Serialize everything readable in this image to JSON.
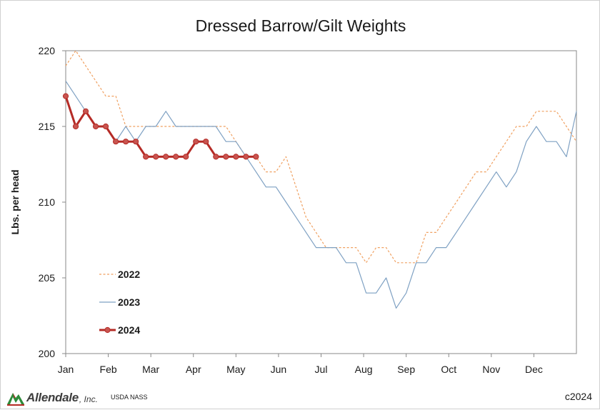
{
  "chart_data": {
    "type": "line",
    "title": "Dressed Barrow/Gilt Weights",
    "ylabel": "Lbs. per head",
    "xlabel": "",
    "ylim": [
      200,
      220
    ],
    "yticks": [
      200,
      205,
      210,
      215,
      220
    ],
    "x_ticks": [
      "Jan",
      "Feb",
      "Mar",
      "Apr",
      "May",
      "Jun",
      "Jul",
      "Aug",
      "Sep",
      "Oct",
      "Nov",
      "Dec"
    ],
    "x_unit": "week of year",
    "x_range": [
      1,
      52
    ],
    "grid": false,
    "legend_position": "bottom-left",
    "series": [
      {
        "name": "2022",
        "color": "#f0a060",
        "style": "dashed",
        "markers": false,
        "x": [
          1,
          2,
          3,
          4,
          5,
          6,
          7,
          8,
          9,
          10,
          11,
          12,
          13,
          14,
          15,
          16,
          17,
          18,
          19,
          20,
          21,
          22,
          23,
          24,
          25,
          26,
          27,
          28,
          29,
          30,
          31,
          32,
          33,
          34,
          35,
          36,
          37,
          38,
          39,
          40,
          41,
          42,
          43,
          44,
          45,
          46,
          47,
          48,
          49,
          50,
          51,
          52
        ],
        "values": [
          219,
          220,
          219,
          218,
          217,
          217,
          215,
          215,
          215,
          215,
          215,
          215,
          215,
          215,
          215,
          215,
          215,
          214,
          213,
          213,
          212,
          212,
          213,
          211,
          209,
          208,
          207,
          207,
          207,
          207,
          206,
          207,
          207,
          206,
          206,
          206,
          208,
          208,
          209,
          210,
          211,
          212,
          212,
          213,
          214,
          215,
          215,
          216,
          216,
          216,
          215,
          214
        ]
      },
      {
        "name": "2023",
        "color": "#7fa1c3",
        "style": "solid",
        "markers": false,
        "x": [
          1,
          2,
          3,
          4,
          5,
          6,
          7,
          8,
          9,
          10,
          11,
          12,
          13,
          14,
          15,
          16,
          17,
          18,
          19,
          20,
          21,
          22,
          23,
          24,
          25,
          26,
          27,
          28,
          29,
          30,
          31,
          32,
          33,
          34,
          35,
          36,
          37,
          38,
          39,
          40,
          41,
          42,
          43,
          44,
          45,
          46,
          47,
          48,
          49,
          50,
          51,
          52
        ],
        "values": [
          218,
          217,
          216,
          215,
          215,
          214,
          215,
          214,
          215,
          215,
          216,
          215,
          215,
          215,
          215,
          215,
          214,
          214,
          213,
          212,
          211,
          211,
          210,
          209,
          208,
          207,
          207,
          207,
          206,
          206,
          204,
          204,
          205,
          203,
          204,
          206,
          206,
          207,
          207,
          208,
          209,
          210,
          211,
          212,
          211,
          212,
          214,
          215,
          214,
          214,
          213,
          216
        ]
      },
      {
        "name": "2024",
        "color": "#b52b26",
        "style": "solid",
        "markers": true,
        "x": [
          1,
          2,
          3,
          4,
          5,
          6,
          7,
          8,
          9,
          10,
          11,
          12,
          13,
          14,
          15,
          16,
          17,
          18,
          19,
          20
        ],
        "values": [
          217,
          215,
          216,
          215,
          215,
          214,
          214,
          214,
          213,
          213,
          213,
          213,
          213,
          214,
          214,
          213,
          213,
          213,
          213,
          213
        ]
      }
    ]
  },
  "footer": {
    "logo_name": "Allendale",
    "logo_suffix": ", Inc.",
    "source": "USDA NASS",
    "copyright": "c2024"
  }
}
